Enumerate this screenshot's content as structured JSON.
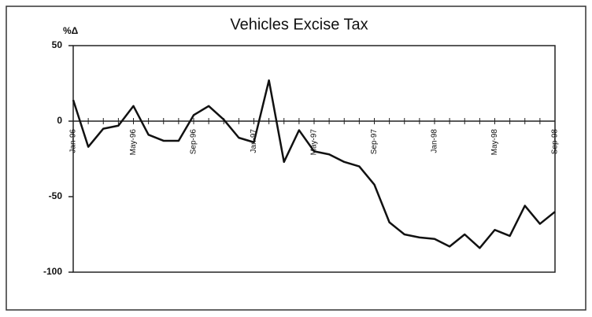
{
  "chart_data": {
    "type": "line",
    "title": "Vehicles Excise Tax",
    "y_label": "%Δ",
    "categories": [
      "Jan-96",
      null,
      null,
      null,
      "May-96",
      null,
      null,
      null,
      "Sep-96",
      null,
      null,
      null,
      "Jan-97",
      null,
      null,
      null,
      "May-97",
      null,
      null,
      null,
      "Sep-97",
      null,
      null,
      null,
      "Jan-98",
      null,
      null,
      null,
      "May-98",
      null,
      null,
      null,
      "Sep-98"
    ],
    "series": [
      {
        "name": "Vehicles Excise Tax",
        "color": "#111111",
        "values": [
          14,
          -17,
          -5,
          -3,
          10,
          -9,
          -13,
          -13,
          4,
          10,
          1,
          -11,
          -14,
          27,
          -27,
          -6,
          -20,
          -22,
          -27,
          -30,
          -42,
          -67,
          -75,
          -77,
          -78,
          -83,
          -75,
          -84,
          -72,
          -76,
          -56,
          -68,
          -60
        ]
      }
    ],
    "ylim": [
      -100,
      50
    ],
    "yticks": [
      50,
      0,
      -50,
      -100
    ]
  }
}
